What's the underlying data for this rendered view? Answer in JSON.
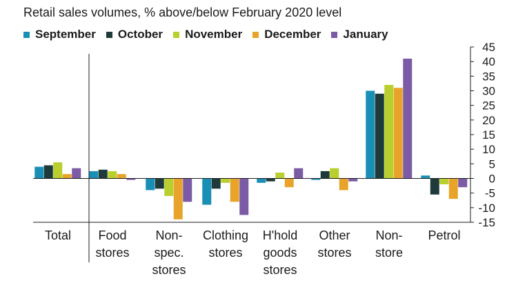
{
  "chart_data": {
    "type": "bar",
    "title": "Retail sales volumes, % above/below February 2020 level",
    "categories": [
      [
        "Total"
      ],
      [
        "Food",
        "stores"
      ],
      [
        "Non-",
        "spec.",
        "stores"
      ],
      [
        "Clothing",
        "stores"
      ],
      [
        "H'hold",
        "goods",
        "stores"
      ],
      [
        "Other",
        "stores"
      ],
      [
        "Non-",
        "store"
      ],
      [
        "Petrol"
      ]
    ],
    "series": [
      {
        "name": "September",
        "color": "#1a8fb5",
        "values": [
          4,
          2.5,
          -4,
          -9,
          -1.5,
          -0.5,
          30,
          1
        ]
      },
      {
        "name": "October",
        "color": "#1f3a3a",
        "values": [
          4.5,
          3,
          -3.5,
          -3.5,
          -1,
          2.5,
          29,
          -5.5
        ]
      },
      {
        "name": "November",
        "color": "#b9cf2d",
        "values": [
          5.5,
          2.5,
          -6,
          -1.5,
          2,
          3.5,
          32,
          -2
        ]
      },
      {
        "name": "December",
        "color": "#e8a42a",
        "values": [
          1.5,
          1.5,
          -14,
          -8,
          -3,
          -4,
          31,
          -7
        ]
      },
      {
        "name": "January",
        "color": "#7b5aa6",
        "values": [
          3.5,
          -0.5,
          -8,
          -12.5,
          3.5,
          -1,
          41,
          -3
        ]
      }
    ],
    "ylim": [
      -15,
      45
    ],
    "yticks": [
      45,
      40,
      35,
      30,
      25,
      20,
      15,
      10,
      5,
      0,
      -5,
      -10,
      -15
    ],
    "legend_position": "top",
    "y_axis_side": "right",
    "grid": false
  }
}
